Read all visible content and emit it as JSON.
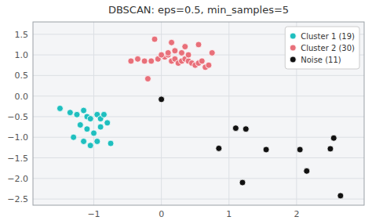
{
  "chart_data": {
    "type": "scatter",
    "title": "DBSCAN: eps=0.5, min_samples=5",
    "series": [
      {
        "name": "Cluster 1 (19)",
        "color": "#1fbfbf",
        "x": [
          -1.5,
          -1.35,
          -1.25,
          -1.15,
          -1.1,
          -1.05,
          -0.95,
          -0.9,
          -0.85,
          -0.8,
          -1.2,
          -1.1,
          -1.0,
          -0.9,
          -1.3,
          -1.15,
          -1.05,
          -0.95,
          -0.75
        ],
        "values": [
          -0.3,
          -0.4,
          -0.45,
          -0.35,
          -0.5,
          -0.55,
          -0.45,
          -0.55,
          -0.45,
          -0.65,
          -0.7,
          -0.8,
          -0.9,
          -0.75,
          -1.0,
          -1.1,
          -1.2,
          -1.1,
          -1.15
        ]
      },
      {
        "name": "Cluster 2 (30)",
        "color": "#e8707a",
        "x": [
          -0.45,
          -0.35,
          -0.25,
          -0.15,
          -0.05,
          0.05,
          0.1,
          0.15,
          0.2,
          0.25,
          0.3,
          0.35,
          0.4,
          0.45,
          0.5,
          0.55,
          0.6,
          0.65,
          0.7,
          0.0,
          0.1,
          0.2,
          0.3,
          0.4,
          -0.1,
          0.15,
          0.35,
          0.55,
          0.75,
          -0.2
        ],
        "values": [
          0.85,
          0.9,
          0.85,
          0.85,
          0.9,
          0.95,
          1.0,
          0.85,
          0.9,
          0.8,
          0.85,
          0.9,
          0.85,
          0.8,
          0.75,
          0.8,
          0.85,
          0.7,
          0.75,
          1.0,
          1.05,
          1.1,
          1.05,
          1.0,
          1.38,
          1.3,
          1.2,
          1.25,
          1.05,
          0.42
        ]
      },
      {
        "name": "Noise (11)",
        "color": "#111111",
        "x": [
          0.0,
          1.1,
          1.25,
          0.85,
          1.55,
          2.05,
          2.15,
          2.55,
          1.2,
          2.5,
          2.65
        ],
        "values": [
          -0.08,
          -0.78,
          -0.8,
          -1.27,
          -1.3,
          -1.3,
          -1.82,
          -1.02,
          -2.1,
          -1.28,
          -2.42
        ]
      }
    ],
    "xlim": [
      -1.9,
      3.0
    ],
    "ylim": [
      -2.65,
      1.8
    ],
    "xticks": [
      {
        "value": -1,
        "label": "−1"
      },
      0,
      1,
      2
    ],
    "yticks": [
      {
        "value": -2.5,
        "label": "−2.5"
      },
      {
        "value": -2.0,
        "label": "−2.0"
      },
      {
        "value": -1.5,
        "label": "−1.5"
      },
      {
        "value": -1.0,
        "label": "−1.0"
      },
      {
        "value": -0.5,
        "label": "−0.5"
      },
      {
        "value": 0.0,
        "label": "0.0"
      },
      0.5,
      {
        "value": 1.0,
        "label": "1.0"
      },
      1.5
    ],
    "grid": true,
    "legend": "upper right"
  }
}
